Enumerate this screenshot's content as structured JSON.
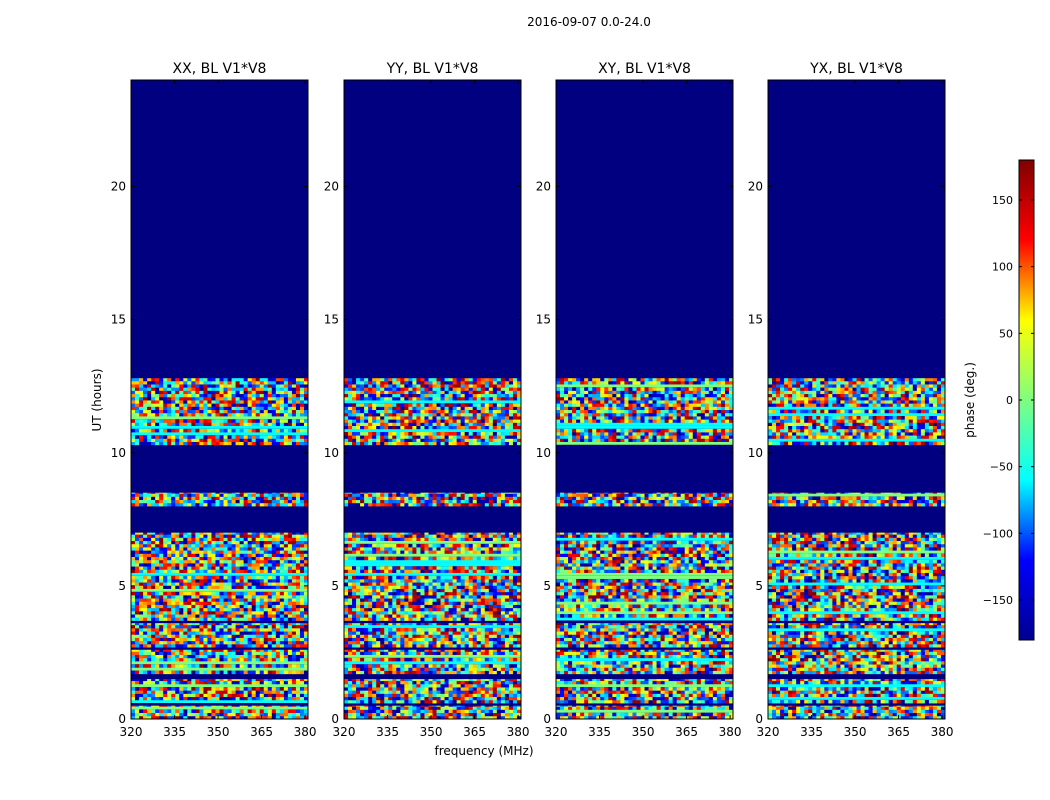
{
  "figure_title": "2016-09-07 0.0-24.0",
  "ylabel": "UT (hours)",
  "xlabel": "frequency (MHz)",
  "colorbar": {
    "label": "phase (deg.)",
    "range": [
      -180,
      180
    ],
    "ticks": [
      150,
      100,
      50,
      0,
      -50,
      -100,
      -150
    ],
    "tick_labels": [
      "150",
      "100",
      "50",
      "0",
      "−50",
      "−100",
      "−150"
    ],
    "colormap": "jet",
    "colors": [
      "#00008f",
      "#0000ff",
      "#00ffff",
      "#7fff7f",
      "#ffff00",
      "#ff0000",
      "#800000"
    ]
  },
  "chart_data": [
    {
      "type": "heatmap",
      "title": "XX, BL V1*V8",
      "xlim": [
        320,
        381
      ],
      "ylim": [
        0,
        24
      ],
      "xticks": [
        320,
        335,
        350,
        365,
        380
      ],
      "yticks": [
        0,
        5,
        10,
        15,
        20
      ],
      "x_tick_labels": [
        "320",
        "335",
        "350",
        "365",
        "380"
      ],
      "y_tick_labels": [
        "0",
        "5",
        "10",
        "15",
        "20"
      ],
      "flagged_value": -180,
      "data_hours": [
        [
          0.0,
          0.5
        ],
        [
          0.6,
          1.5
        ],
        [
          1.7,
          2.6
        ],
        [
          2.7,
          3.6
        ],
        [
          3.7,
          7.0
        ],
        [
          8.0,
          8.5
        ],
        [
          10.3,
          12.8
        ]
      ],
      "dominant_phase_deg": null
    },
    {
      "type": "heatmap",
      "title": "YY, BL V1*V8",
      "xlim": [
        320,
        381
      ],
      "ylim": [
        0,
        24
      ],
      "xticks": [
        320,
        335,
        350,
        365,
        380
      ],
      "yticks": [
        0,
        5,
        10,
        15,
        20
      ],
      "x_tick_labels": [
        "320",
        "335",
        "350",
        "365",
        "380"
      ],
      "y_tick_labels": [
        "0",
        "5",
        "10",
        "15",
        "20"
      ],
      "flagged_value": -180,
      "data_hours": [
        [
          0.0,
          0.5
        ],
        [
          0.6,
          1.5
        ],
        [
          1.7,
          2.6
        ],
        [
          2.7,
          3.6
        ],
        [
          3.7,
          7.0
        ],
        [
          8.0,
          8.5
        ],
        [
          10.3,
          12.8
        ]
      ],
      "dominant_phase_deg": null
    },
    {
      "type": "heatmap",
      "title": "XY, BL V1*V8",
      "xlim": [
        320,
        381
      ],
      "ylim": [
        0,
        24
      ],
      "xticks": [
        320,
        335,
        350,
        365,
        380
      ],
      "yticks": [
        0,
        5,
        10,
        15,
        20
      ],
      "x_tick_labels": [
        "320",
        "335",
        "350",
        "365",
        "380"
      ],
      "y_tick_labels": [
        "0",
        "5",
        "10",
        "15",
        "20"
      ],
      "flagged_value": -180,
      "data_hours": [
        [
          0.0,
          0.5
        ],
        [
          0.6,
          1.5
        ],
        [
          1.7,
          2.6
        ],
        [
          2.7,
          3.6
        ],
        [
          3.7,
          7.0
        ],
        [
          8.0,
          8.5
        ],
        [
          10.3,
          12.8
        ]
      ],
      "dominant_phase_deg": null
    },
    {
      "type": "heatmap",
      "title": "YX, BL V1*V8",
      "xlim": [
        320,
        381
      ],
      "ylim": [
        0,
        24
      ],
      "xticks": [
        320,
        335,
        350,
        365,
        380
      ],
      "yticks": [
        0,
        5,
        10,
        15,
        20
      ],
      "x_tick_labels": [
        "320",
        "335",
        "350",
        "365",
        "380"
      ],
      "y_tick_labels": [
        "0",
        "5",
        "10",
        "15",
        "20"
      ],
      "flagged_value": -180,
      "data_hours": [
        [
          0.0,
          0.5
        ],
        [
          0.6,
          1.5
        ],
        [
          1.7,
          2.6
        ],
        [
          2.7,
          3.6
        ],
        [
          3.7,
          7.0
        ],
        [
          8.0,
          8.5
        ],
        [
          10.3,
          12.8
        ]
      ],
      "dominant_phase_deg": null
    }
  ]
}
